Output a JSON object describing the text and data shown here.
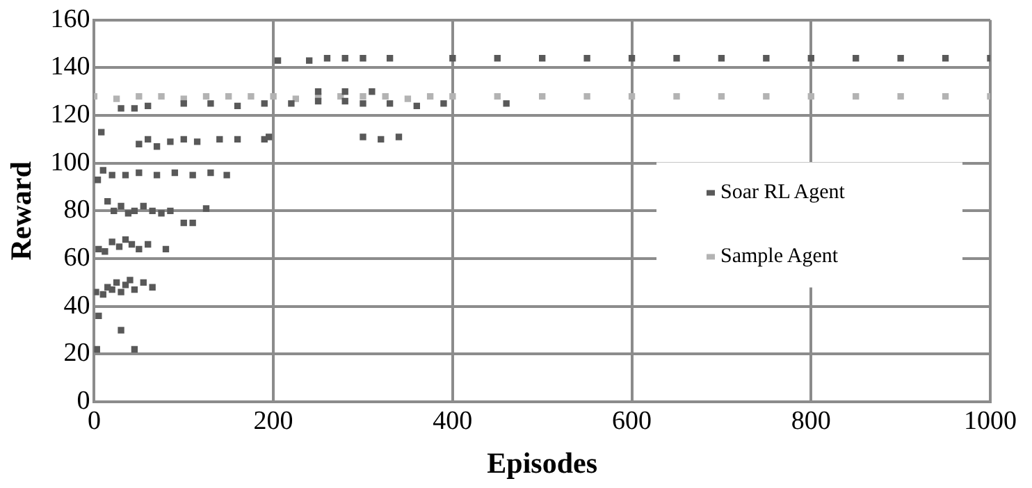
{
  "chart_data": {
    "type": "scatter",
    "xlabel": "Episodes",
    "ylabel": "Reward",
    "xlim": [
      0,
      1000
    ],
    "xticks": [
      0,
      200,
      400,
      600,
      800,
      1000
    ],
    "ylim": [
      0,
      160
    ],
    "yticks": [
      0,
      20,
      40,
      60,
      80,
      100,
      120,
      140,
      160
    ],
    "grid": true,
    "legend": "right",
    "marker": "square",
    "series": [
      {
        "name": "Soar RL Agent",
        "color": "#595959",
        "x": [
          3,
          45,
          5,
          30,
          2,
          10,
          15,
          20,
          25,
          30,
          35,
          40,
          45,
          55,
          65,
          5,
          12,
          20,
          28,
          35,
          42,
          50,
          60,
          80,
          15,
          22,
          30,
          38,
          45,
          55,
          65,
          75,
          85,
          100,
          110,
          125,
          4,
          10,
          20,
          35,
          50,
          70,
          90,
          110,
          130,
          148,
          8,
          50,
          60,
          70,
          85,
          100,
          115,
          140,
          160,
          190,
          195,
          30,
          45,
          60,
          100,
          130,
          160,
          190,
          220,
          250,
          280,
          300,
          330,
          360,
          390,
          300,
          320,
          340,
          205,
          240,
          260,
          280,
          300,
          330,
          250,
          280,
          310,
          400,
          450,
          500,
          550,
          600,
          650,
          700,
          750,
          800,
          850,
          900,
          950,
          1000,
          460
        ],
        "values": [
          22,
          22,
          36,
          30,
          46,
          45,
          48,
          47,
          50,
          46,
          49,
          51,
          47,
          50,
          48,
          64,
          63,
          67,
          65,
          68,
          66,
          64,
          66,
          64,
          84,
          80,
          82,
          79,
          80,
          82,
          80,
          79,
          80,
          75,
          75,
          81,
          93,
          97,
          95,
          95,
          96,
          95,
          96,
          95,
          96,
          95,
          113,
          108,
          110,
          107,
          109,
          110,
          109,
          110,
          110,
          110,
          111,
          123,
          123,
          124,
          125,
          125,
          124,
          125,
          125,
          126,
          126,
          125,
          125,
          124,
          125,
          111,
          110,
          111,
          143,
          143,
          144,
          144,
          144,
          144,
          130,
          130,
          130,
          144,
          144,
          144,
          144,
          144,
          144,
          144,
          144,
          144,
          144,
          144,
          144,
          144,
          125
        ]
      },
      {
        "name": "Sample Agent",
        "color": "#b3b3b3",
        "x": [
          0,
          25,
          50,
          75,
          100,
          125,
          150,
          175,
          200,
          225,
          250,
          275,
          300,
          325,
          350,
          375,
          400,
          450,
          500,
          550,
          600,
          650,
          700,
          750,
          800,
          850,
          900,
          950,
          1000
        ],
        "values": [
          128,
          127,
          128,
          128,
          127,
          128,
          128,
          128,
          128,
          127,
          128,
          128,
          128,
          128,
          127,
          128,
          128,
          128,
          128,
          128,
          128,
          128,
          128,
          128,
          128,
          128,
          128,
          128,
          128
        ]
      }
    ]
  }
}
